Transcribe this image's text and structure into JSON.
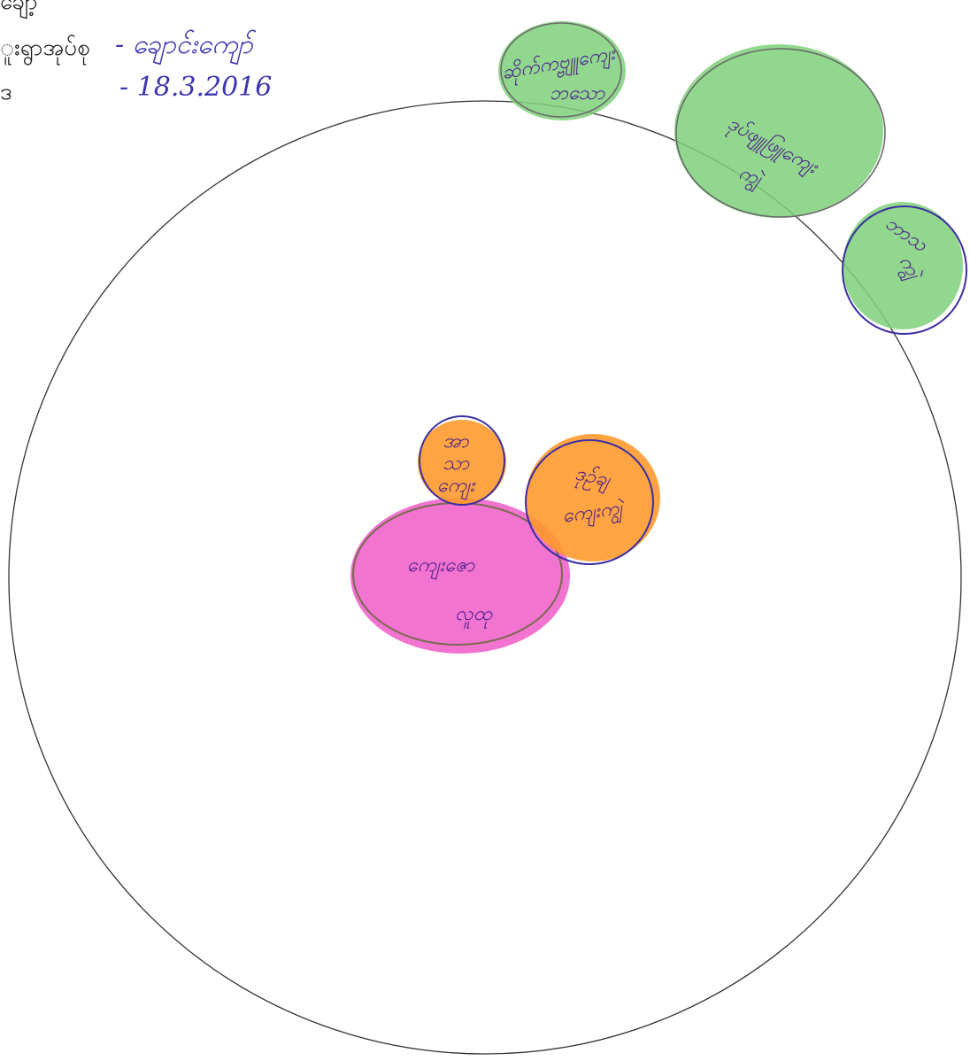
{
  "header": {
    "rows": [
      {
        "label": "ချော့",
        "value": ""
      },
      {
        "label": "ူးရွာအုပ်စု",
        "value": "- ချောင်းကျော်"
      },
      {
        "label": "ဒ",
        "value": "- 18.3.2016"
      }
    ]
  },
  "diagram": {
    "colors": {
      "outer_line": "#333333",
      "green_fill": "#7fd07a",
      "orange_fill": "#ff9a2e",
      "pink_fill": "#f05ac8",
      "ink": "#4a1f8a"
    },
    "nodes": [
      {
        "id": "green-1",
        "lines": [
          "ဆိုက်ကဗ္ဗျူကျေး",
          "ဘသော"
        ]
      },
      {
        "id": "green-2",
        "lines": [
          "ဒုပ်ဖျူဖြူကျေး",
          "ကျွဲ"
        ]
      },
      {
        "id": "green-3",
        "lines": [
          "ဘာသ",
          "ကျွဲ"
        ]
      },
      {
        "id": "orange-1",
        "lines": [
          "အာ",
          "သာ",
          "ကျေး"
        ]
      },
      {
        "id": "orange-2",
        "lines": [
          "ဒုဉ်ချ",
          "ကျေးကျွဲ"
        ]
      },
      {
        "id": "pink-1",
        "lines": [
          "ကျေးဇော",
          "လူထု"
        ]
      }
    ]
  }
}
